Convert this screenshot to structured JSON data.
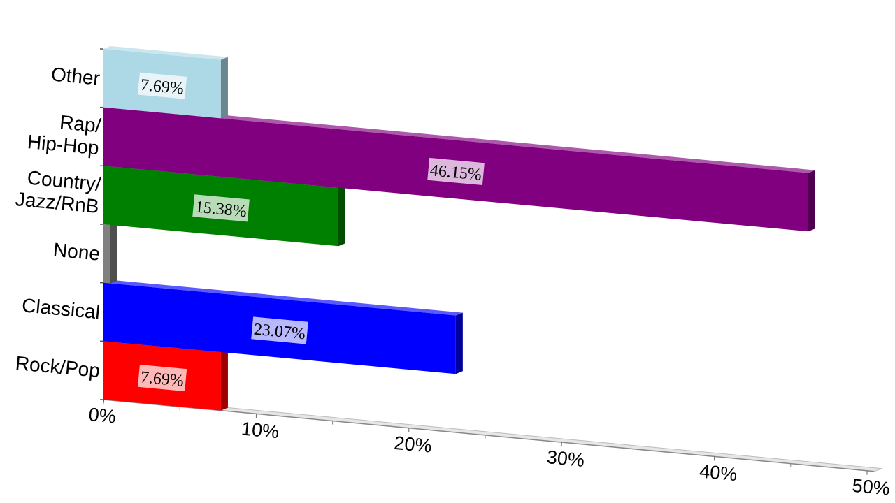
{
  "chart_data": {
    "type": "bar",
    "orientation": "horizontal",
    "categories": [
      "Other",
      "Rap/\nHip-Hop",
      "Country/\nJazz/RnB",
      "None",
      "Classical",
      "Rock/Pop"
    ],
    "values": [
      7.69,
      46.15,
      15.38,
      0,
      23.07,
      7.69
    ],
    "data_labels": [
      "7.69%",
      "46.15%",
      "15.38%",
      "",
      "23.07%",
      "7.69%"
    ],
    "colors": [
      "#add8e6",
      "#800080",
      "#008000",
      "#808080",
      "#0000ff",
      "#ff0000"
    ],
    "x_ticks": [
      "0%",
      "10%",
      "20%",
      "30%",
      "40%",
      "50%"
    ],
    "xlim": [
      0,
      50
    ],
    "title": "",
    "xlabel": "",
    "ylabel": "",
    "grid": false,
    "legend": "none",
    "style": "3d-perspective"
  }
}
